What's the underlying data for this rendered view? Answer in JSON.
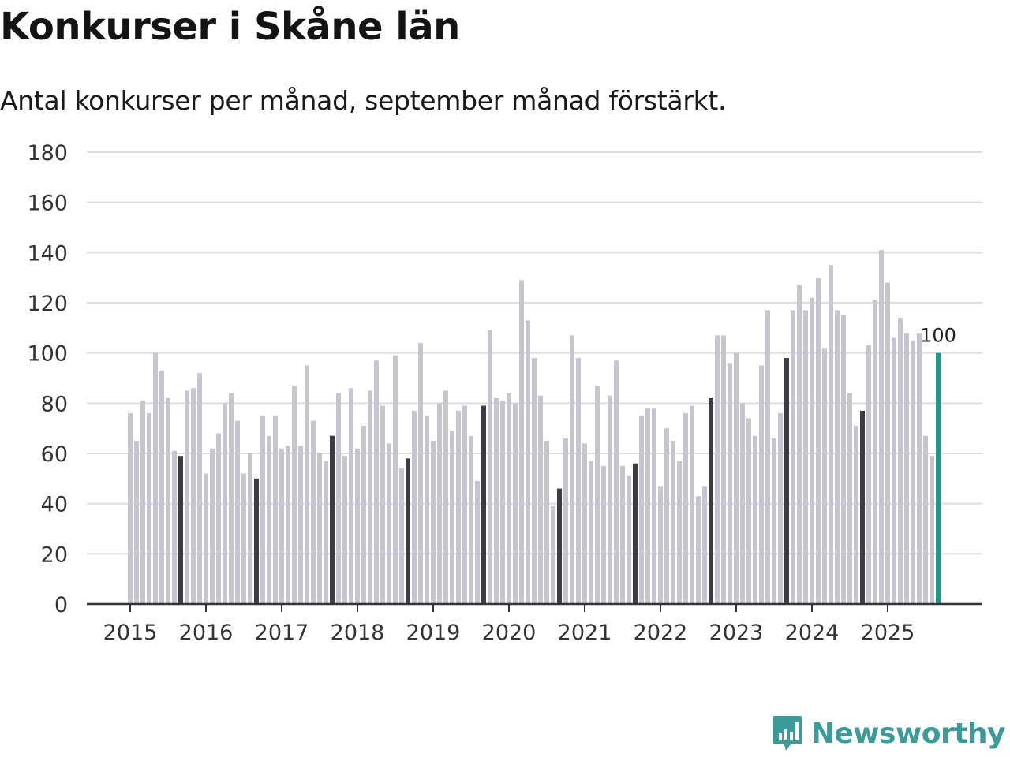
{
  "header": {
    "title": "Konkurser i Skåne län",
    "subtitle": "Antal konkurser per månad, september månad förstärkt."
  },
  "brand": {
    "name": "Newsworthy"
  },
  "colors": {
    "bar": "#c6c5d1",
    "september": "#3d3b4a",
    "latest": "#1a9a8f",
    "grid": "#dddddd",
    "axis": "#333333"
  },
  "chart_data": {
    "type": "bar",
    "title": "Konkurser i Skåne län",
    "subtitle": "Antal konkurser per månad, september månad förstärkt.",
    "xlabel": "",
    "ylabel": "",
    "ylim": [
      0,
      180
    ],
    "yticks": [
      0,
      20,
      40,
      60,
      80,
      100,
      120,
      140,
      160,
      180
    ],
    "xticks": [
      "2015",
      "2016",
      "2017",
      "2018",
      "2019",
      "2020",
      "2021",
      "2022",
      "2023",
      "2024",
      "2025"
    ],
    "start": "2015-01",
    "highlight_month": "september",
    "annotation": {
      "label": "100",
      "index": 128
    },
    "series": [
      {
        "name": "Antal konkurser",
        "values": [
          76,
          65,
          81,
          76,
          100,
          93,
          82,
          61,
          59,
          85,
          86,
          92,
          52,
          62,
          68,
          80,
          84,
          73,
          52,
          60,
          50,
          75,
          67,
          75,
          62,
          63,
          87,
          63,
          95,
          73,
          60,
          57,
          67,
          84,
          59,
          86,
          62,
          71,
          85,
          97,
          79,
          64,
          99,
          54,
          58,
          77,
          104,
          75,
          65,
          80,
          85,
          69,
          77,
          79,
          67,
          49,
          79,
          109,
          82,
          81,
          84,
          80,
          129,
          113,
          98,
          83,
          65,
          39,
          46,
          66,
          107,
          98,
          64,
          57,
          87,
          55,
          83,
          97,
          55,
          51,
          56,
          75,
          78,
          78,
          47,
          70,
          65,
          57,
          76,
          79,
          43,
          47,
          82,
          107,
          107,
          96,
          100,
          80,
          74,
          67,
          95,
          117,
          66,
          76,
          98,
          117,
          127,
          117,
          122,
          130,
          102,
          135,
          117,
          115,
          84,
          71,
          77,
          103,
          121,
          141,
          128,
          106,
          114,
          108,
          105,
          108,
          67,
          59,
          100
        ]
      }
    ]
  }
}
